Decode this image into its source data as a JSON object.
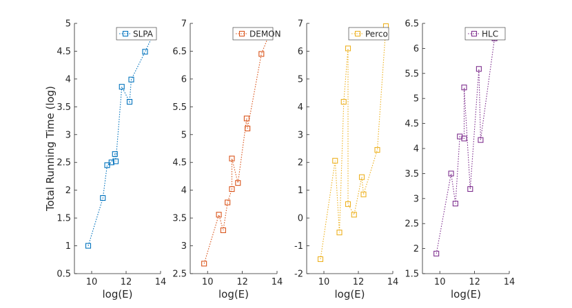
{
  "chart_data": [
    {
      "type": "line",
      "xlabel": "log(E)",
      "ylabel": "Total Running Time (log)",
      "xlim": [
        9,
        14
      ],
      "ylim": [
        0.5,
        5
      ],
      "xticks": [
        10,
        12,
        14
      ],
      "yticks": [
        0.5,
        1,
        1.5,
        2,
        2.5,
        3,
        3.5,
        4,
        4.5,
        5
      ],
      "legend_position": "top-right",
      "series": [
        {
          "name": "SLPA",
          "color": "#0072BD",
          "x": [
            9.8,
            10.65,
            10.9,
            11.15,
            11.35,
            11.4,
            11.75,
            12.2,
            12.3,
            13.1,
            13.6
          ],
          "y": [
            1.0,
            1.86,
            2.45,
            2.5,
            2.65,
            2.52,
            3.86,
            3.59,
            3.99,
            4.49,
            4.82
          ]
        }
      ]
    },
    {
      "type": "line",
      "xlabel": "log(E)",
      "ylabel": "",
      "xlim": [
        9,
        14
      ],
      "ylim": [
        2.5,
        7
      ],
      "xticks": [
        10,
        12,
        14
      ],
      "yticks": [
        2.5,
        3,
        3.5,
        4,
        4.5,
        5,
        5.5,
        6,
        6.5,
        7
      ],
      "legend_position": "top-right",
      "series": [
        {
          "name": "DEMON",
          "color": "#D95319",
          "x": [
            9.8,
            10.65,
            10.9,
            11.15,
            11.4,
            11.4,
            11.75,
            12.25,
            12.3,
            13.1,
            13.6
          ],
          "y": [
            2.68,
            3.56,
            3.28,
            3.78,
            4.02,
            4.57,
            4.13,
            5.29,
            5.11,
            6.45,
            6.84
          ]
        }
      ]
    },
    {
      "type": "line",
      "xlabel": "log(E)",
      "ylabel": "",
      "xlim": [
        9,
        14
      ],
      "ylim": [
        -2,
        7
      ],
      "xticks": [
        10,
        12,
        14
      ],
      "yticks": [
        -2,
        -1,
        0,
        1,
        2,
        3,
        4,
        5,
        6,
        7
      ],
      "legend_position": "top-right",
      "series": [
        {
          "name": "Perco",
          "color": "#EDB120",
          "x": [
            9.8,
            10.65,
            10.9,
            11.15,
            11.4,
            11.4,
            11.75,
            12.2,
            12.3,
            13.1,
            13.6
          ],
          "y": [
            -1.48,
            2.06,
            -0.52,
            4.18,
            6.1,
            0.5,
            0.12,
            1.47,
            0.85,
            2.45,
            6.9
          ]
        }
      ]
    },
    {
      "type": "line",
      "xlabel": "log(E)",
      "ylabel": "",
      "xlim": [
        9,
        14
      ],
      "ylim": [
        1.5,
        6.5
      ],
      "xticks": [
        10,
        12,
        14
      ],
      "yticks": [
        1.5,
        2,
        2.5,
        3,
        3.5,
        4,
        4.5,
        5,
        5.5,
        6,
        6.5
      ],
      "legend_position": "top-right",
      "series": [
        {
          "name": "HLC",
          "color": "#7E2F8E",
          "x": [
            9.8,
            10.65,
            10.9,
            11.15,
            11.4,
            11.4,
            11.75,
            12.25,
            12.35,
            13.15
          ],
          "y": [
            1.9,
            3.5,
            2.9,
            4.24,
            4.2,
            5.22,
            3.19,
            5.59,
            4.17,
            6.2
          ]
        }
      ]
    }
  ]
}
